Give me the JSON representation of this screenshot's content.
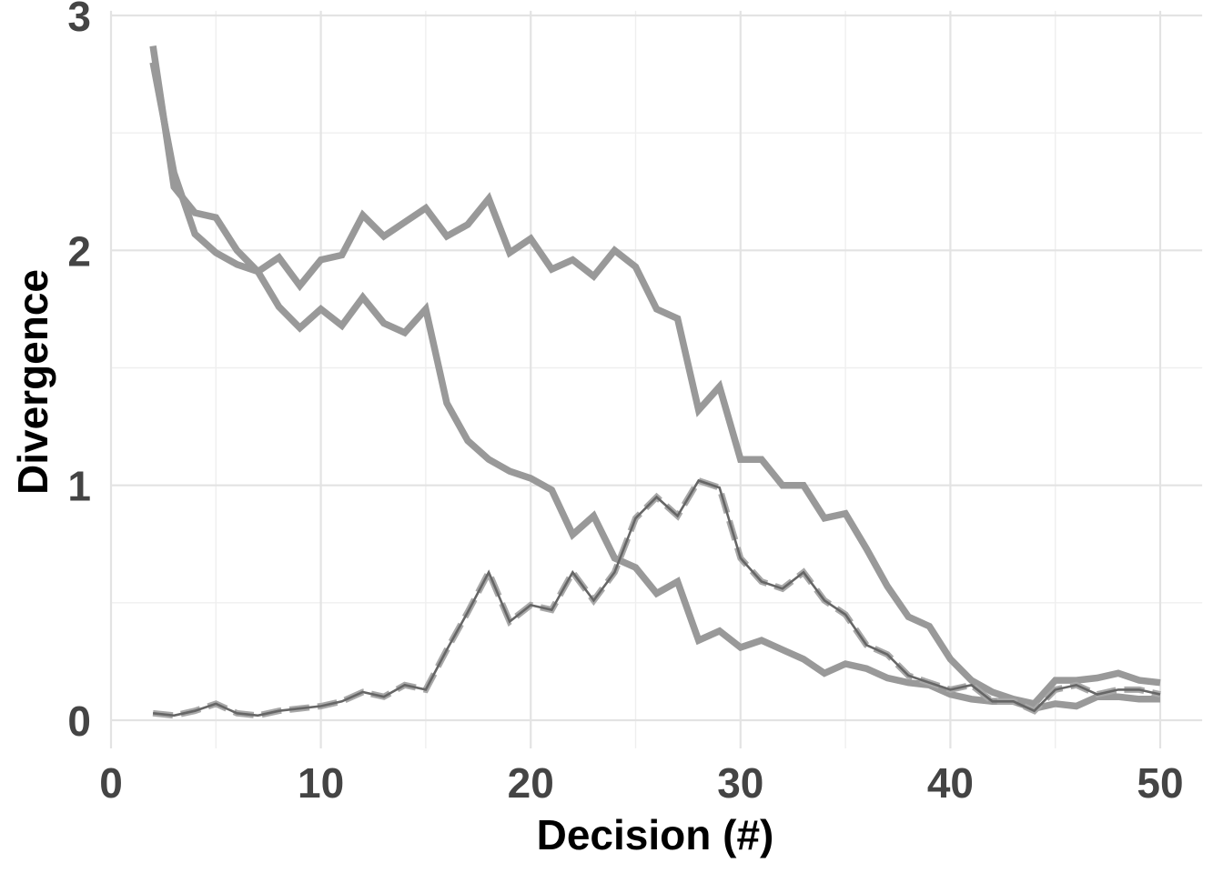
{
  "chart_data": {
    "type": "line",
    "title": "",
    "xlabel": "Decision (#)",
    "ylabel": "Divergence",
    "xlim": [
      0,
      52
    ],
    "ylim": [
      -0.12,
      3.02
    ],
    "xticks": [
      0,
      10,
      20,
      30,
      40,
      50
    ],
    "yticks": [
      0,
      1,
      2,
      3
    ],
    "grid": true,
    "legend": "none",
    "x": [
      2,
      3,
      4,
      5,
      6,
      7,
      8,
      9,
      10,
      11,
      12,
      13,
      14,
      15,
      16,
      17,
      18,
      19,
      20,
      21,
      22,
      23,
      24,
      25,
      26,
      27,
      28,
      29,
      30,
      31,
      32,
      33,
      34,
      35,
      36,
      37,
      38,
      39,
      40,
      41,
      42,
      43,
      44,
      45,
      46,
      47,
      48,
      49,
      50
    ],
    "series": [
      {
        "color": "#999999",
        "style": "thick",
        "values": [
          2.87,
          2.27,
          2.16,
          2.14,
          2.0,
          1.91,
          1.97,
          1.85,
          1.96,
          1.98,
          2.15,
          2.06,
          2.12,
          2.18,
          2.06,
          2.11,
          2.22,
          1.99,
          2.05,
          1.92,
          1.96,
          1.89,
          2.0,
          1.93,
          1.75,
          1.71,
          1.32,
          1.42,
          1.11,
          1.11,
          1.0,
          1.0,
          0.86,
          0.88,
          0.73,
          0.57,
          0.44,
          0.4,
          0.26,
          0.17,
          0.12,
          0.09,
          0.07,
          0.17,
          0.17,
          0.18,
          0.2,
          0.17,
          0.16
        ]
      },
      {
        "color": "#999999",
        "style": "thick",
        "values": [
          2.8,
          2.33,
          2.07,
          1.99,
          1.94,
          1.91,
          1.76,
          1.67,
          1.75,
          1.68,
          1.8,
          1.69,
          1.65,
          1.75,
          1.35,
          1.19,
          1.11,
          1.06,
          1.03,
          0.98,
          0.79,
          0.87,
          0.69,
          0.65,
          0.54,
          0.59,
          0.34,
          0.38,
          0.31,
          0.34,
          0.3,
          0.26,
          0.2,
          0.24,
          0.22,
          0.18,
          0.16,
          0.15,
          0.11,
          0.09,
          0.08,
          0.08,
          0.05,
          0.07,
          0.06,
          0.1,
          0.1,
          0.09,
          0.09
        ]
      },
      {
        "color": "#a8a8a8",
        "style": "dashed",
        "values": [
          0.03,
          0.02,
          0.04,
          0.07,
          0.03,
          0.02,
          0.04,
          0.05,
          0.06,
          0.08,
          0.12,
          0.1,
          0.15,
          0.13,
          0.3,
          0.46,
          0.63,
          0.42,
          0.49,
          0.47,
          0.63,
          0.51,
          0.63,
          0.86,
          0.95,
          0.87,
          1.02,
          0.99,
          0.69,
          0.59,
          0.56,
          0.63,
          0.51,
          0.45,
          0.32,
          0.28,
          0.19,
          0.16,
          0.13,
          0.15,
          0.08,
          0.08,
          0.04,
          0.13,
          0.15,
          0.11,
          0.13,
          0.13,
          0.11
        ]
      },
      {
        "color": "#666666",
        "style": "thin",
        "values": [
          0.03,
          0.02,
          0.04,
          0.07,
          0.03,
          0.02,
          0.04,
          0.05,
          0.06,
          0.08,
          0.12,
          0.1,
          0.15,
          0.13,
          0.3,
          0.46,
          0.63,
          0.42,
          0.49,
          0.47,
          0.63,
          0.51,
          0.63,
          0.86,
          0.95,
          0.87,
          1.02,
          0.99,
          0.69,
          0.59,
          0.56,
          0.63,
          0.51,
          0.45,
          0.32,
          0.28,
          0.19,
          0.16,
          0.13,
          0.15,
          0.08,
          0.08,
          0.04,
          0.13,
          0.15,
          0.11,
          0.13,
          0.13,
          0.11
        ]
      }
    ]
  }
}
